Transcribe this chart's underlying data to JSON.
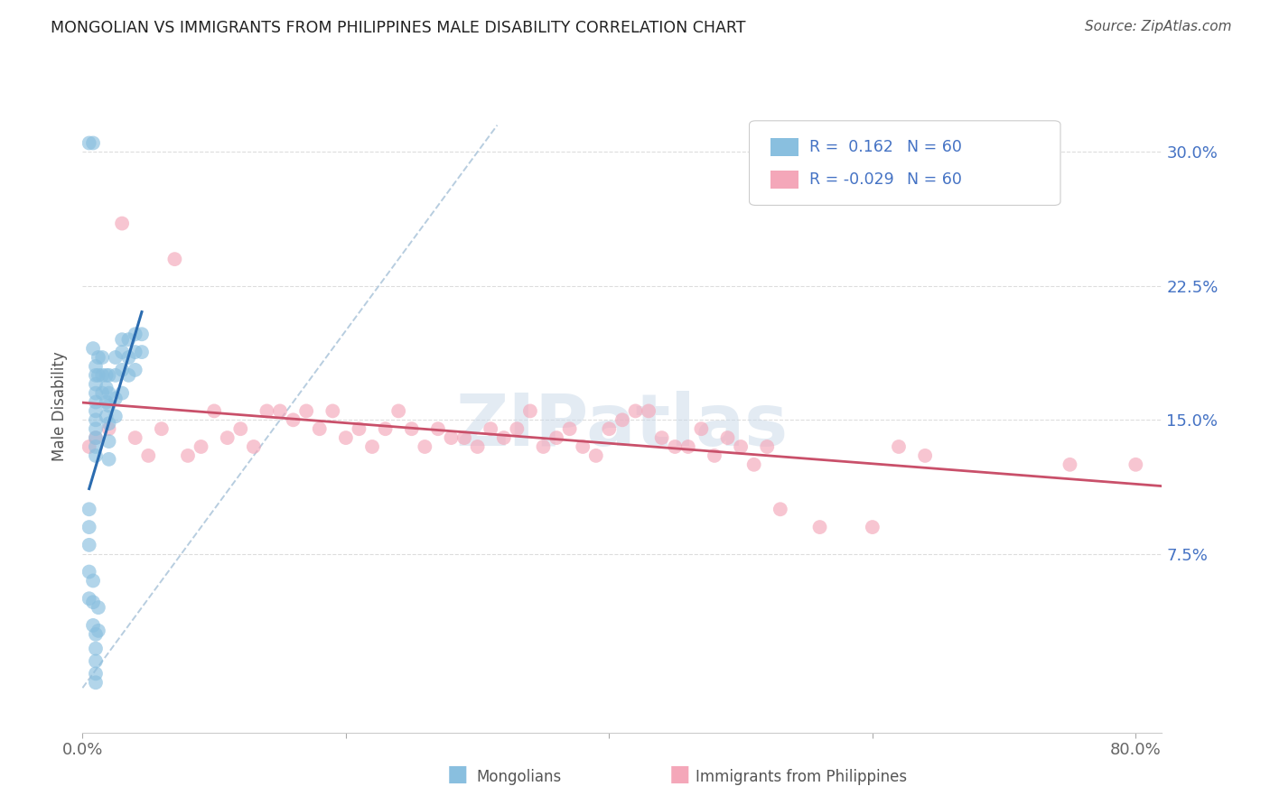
{
  "title": "MONGOLIAN VS IMMIGRANTS FROM PHILIPPINES MALE DISABILITY CORRELATION CHART",
  "source": "Source: ZipAtlas.com",
  "ylabel": "Male Disability",
  "xlim": [
    0.0,
    0.82
  ],
  "ylim": [
    -0.025,
    0.34
  ],
  "xtick_vals": [
    0.0,
    0.2,
    0.4,
    0.6,
    0.8
  ],
  "xtick_labels": [
    "0.0%",
    "",
    "",
    "",
    "80.0%"
  ],
  "ytick_vals": [
    0.075,
    0.15,
    0.225,
    0.3
  ],
  "ytick_labels": [
    "7.5%",
    "15.0%",
    "22.5%",
    "30.0%"
  ],
  "blue_color": "#89bfdf",
  "pink_color": "#f4a7b9",
  "blue_line_color": "#2b6cb0",
  "pink_line_color": "#c9506a",
  "diag_color": "#b0c8dc",
  "grid_color": "#dddddd",
  "watermark": "ZIPatlas",
  "watermark_color": "#c8d8e8",
  "legend_r1": "R =  0.162",
  "legend_n1": "N = 60",
  "legend_r2": "R = -0.029",
  "legend_n2": "N = 60",
  "legend_color": "#4472c4",
  "title_color": "#222222",
  "source_color": "#555555",
  "ylabel_color": "#555555",
  "tick_color": "#666666",
  "ytick_color": "#4472c4",
  "mongo_x": [
    0.005,
    0.008,
    0.008,
    0.01,
    0.01,
    0.01,
    0.01,
    0.01,
    0.01,
    0.01,
    0.01,
    0.01,
    0.01,
    0.01,
    0.012,
    0.012,
    0.015,
    0.015,
    0.015,
    0.018,
    0.018,
    0.018,
    0.018,
    0.02,
    0.02,
    0.02,
    0.02,
    0.02,
    0.02,
    0.025,
    0.025,
    0.025,
    0.025,
    0.03,
    0.03,
    0.03,
    0.03,
    0.035,
    0.035,
    0.035,
    0.04,
    0.04,
    0.04,
    0.045,
    0.045,
    0.005,
    0.005,
    0.005,
    0.005,
    0.005,
    0.008,
    0.008,
    0.008,
    0.01,
    0.01,
    0.01,
    0.01,
    0.01,
    0.012,
    0.012
  ],
  "mongo_y": [
    0.305,
    0.305,
    0.19,
    0.18,
    0.175,
    0.17,
    0.165,
    0.16,
    0.155,
    0.15,
    0.145,
    0.14,
    0.135,
    0.13,
    0.185,
    0.175,
    0.185,
    0.175,
    0.165,
    0.175,
    0.168,
    0.16,
    0.152,
    0.175,
    0.165,
    0.158,
    0.148,
    0.138,
    0.128,
    0.185,
    0.175,
    0.162,
    0.152,
    0.195,
    0.188,
    0.178,
    0.165,
    0.195,
    0.185,
    0.175,
    0.198,
    0.188,
    0.178,
    0.198,
    0.188,
    0.1,
    0.09,
    0.08,
    0.065,
    0.05,
    0.06,
    0.048,
    0.035,
    0.03,
    0.022,
    0.015,
    0.008,
    0.003,
    0.045,
    0.032
  ],
  "phil_x": [
    0.005,
    0.01,
    0.02,
    0.03,
    0.04,
    0.05,
    0.06,
    0.07,
    0.08,
    0.09,
    0.1,
    0.11,
    0.12,
    0.13,
    0.14,
    0.15,
    0.16,
    0.17,
    0.18,
    0.19,
    0.2,
    0.21,
    0.22,
    0.23,
    0.24,
    0.25,
    0.26,
    0.27,
    0.28,
    0.29,
    0.3,
    0.31,
    0.32,
    0.33,
    0.34,
    0.35,
    0.36,
    0.37,
    0.38,
    0.39,
    0.4,
    0.41,
    0.42,
    0.43,
    0.44,
    0.45,
    0.46,
    0.47,
    0.48,
    0.49,
    0.5,
    0.51,
    0.52,
    0.53,
    0.56,
    0.6,
    0.62,
    0.64,
    0.75,
    0.8
  ],
  "phil_y": [
    0.135,
    0.14,
    0.145,
    0.26,
    0.14,
    0.13,
    0.145,
    0.24,
    0.13,
    0.135,
    0.155,
    0.14,
    0.145,
    0.135,
    0.155,
    0.155,
    0.15,
    0.155,
    0.145,
    0.155,
    0.14,
    0.145,
    0.135,
    0.145,
    0.155,
    0.145,
    0.135,
    0.145,
    0.14,
    0.14,
    0.135,
    0.145,
    0.14,
    0.145,
    0.155,
    0.135,
    0.14,
    0.145,
    0.135,
    0.13,
    0.145,
    0.15,
    0.155,
    0.155,
    0.14,
    0.135,
    0.135,
    0.145,
    0.13,
    0.14,
    0.135,
    0.125,
    0.135,
    0.1,
    0.09,
    0.09,
    0.135,
    0.13,
    0.125,
    0.125
  ]
}
